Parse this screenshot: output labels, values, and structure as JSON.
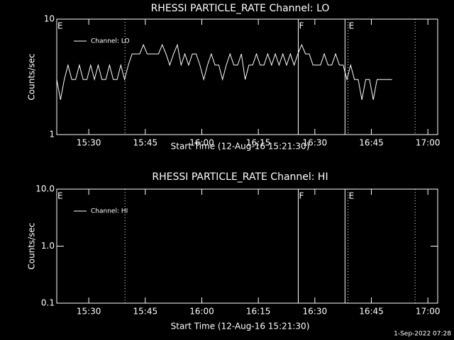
{
  "chart_data": [
    {
      "type": "line",
      "title": "RHESSI PARTICLE_RATE Channel: LO",
      "xlabel": "Start Time (12-Aug-16 15:21:30)",
      "ylabel": "Counts/sec",
      "log_y": true,
      "ylim": [
        1,
        10
      ],
      "yticks": [
        1,
        10
      ],
      "xlim": [
        0,
        101.1
      ],
      "xticks": [
        {
          "value": 8.5,
          "label": "15:30"
        },
        {
          "value": 23.5,
          "label": "15:45"
        },
        {
          "value": 38.5,
          "label": "16:00"
        },
        {
          "value": 53.5,
          "label": "16:15"
        },
        {
          "value": 68.5,
          "label": "16:30"
        },
        {
          "value": 83.5,
          "label": "16:45"
        },
        {
          "value": 98.5,
          "label": "17:00"
        }
      ],
      "x": [
        0,
        1,
        2,
        3,
        4,
        5,
        6,
        7,
        8,
        9,
        10,
        11,
        12,
        13,
        14,
        15,
        16,
        17,
        18,
        19,
        20,
        21,
        22,
        23,
        24,
        25,
        26,
        27,
        28,
        29,
        30,
        31,
        32,
        33,
        34,
        35,
        36,
        37,
        38,
        39,
        40,
        41,
        42,
        43,
        44,
        45,
        46,
        47,
        48,
        49,
        50,
        51,
        52,
        53,
        54,
        55,
        56,
        57,
        58,
        59,
        60,
        61,
        62,
        63,
        64,
        65,
        66,
        67,
        68,
        69,
        70,
        71,
        72,
        73,
        74,
        75,
        76,
        77,
        78,
        79,
        80,
        81,
        82,
        83,
        84,
        85,
        86,
        87,
        88,
        89
      ],
      "series": [
        {
          "name": "Channel: LO",
          "color": "#ffffff",
          "values": [
            3,
            2,
            3,
            4,
            3,
            3,
            4,
            3,
            3,
            4,
            3,
            4,
            3,
            3,
            4,
            3,
            3,
            4,
            3,
            4,
            5,
            5,
            5,
            6,
            5,
            5,
            5,
            5,
            6,
            5,
            4,
            5,
            6,
            4,
            5,
            4,
            5,
            5,
            4,
            3,
            4,
            5,
            4,
            4,
            3,
            4,
            5,
            4,
            4,
            5,
            3,
            4,
            4,
            5,
            4,
            4,
            5,
            4,
            5,
            4,
            5,
            4,
            5,
            4,
            5,
            6,
            5,
            5,
            4,
            4,
            4,
            5,
            4,
            4,
            5,
            4,
            4,
            3,
            4,
            3,
            3,
            2,
            3,
            3,
            2,
            3,
            3,
            3,
            3,
            3
          ]
        }
      ],
      "markers": [
        {
          "x": 18.1,
          "style": "dotted"
        },
        {
          "x": 64.1,
          "style": "solid"
        },
        {
          "x": 76.5,
          "style": "solid"
        },
        {
          "x": 77.3,
          "style": "dotted"
        },
        {
          "x": 95.1,
          "style": "dotted"
        }
      ],
      "annotations": [
        {
          "x": 0,
          "text": "E"
        },
        {
          "x": 64.1,
          "text": "F"
        },
        {
          "x": 77.3,
          "text": "E"
        }
      ]
    },
    {
      "type": "line",
      "title": "RHESSI PARTICLE_RATE Channel: HI",
      "xlabel": "Start Time (12-Aug-16 15:21:30)",
      "ylabel": "Counts/sec",
      "log_y": true,
      "ylim": [
        0.1,
        10
      ],
      "yticks": [
        0.1,
        {
          "value": 1,
          "label": "1.0"
        },
        {
          "value": 10,
          "label": "10.0"
        }
      ],
      "xlim": [
        0,
        101.1
      ],
      "xticks": [
        {
          "value": 8.5,
          "label": "15:30"
        },
        {
          "value": 23.5,
          "label": "15:45"
        },
        {
          "value": 38.5,
          "label": "16:00"
        },
        {
          "value": 53.5,
          "label": "16:15"
        },
        {
          "value": 68.5,
          "label": "16:30"
        },
        {
          "value": 83.5,
          "label": "16:45"
        },
        {
          "value": 98.5,
          "label": "17:00"
        }
      ],
      "x": [],
      "series": [
        {
          "name": "Channel: HI",
          "color": "#ffffff",
          "values": []
        }
      ],
      "markers": [
        {
          "x": 18.1,
          "style": "dotted"
        },
        {
          "x": 64.1,
          "style": "solid"
        },
        {
          "x": 76.5,
          "style": "solid"
        },
        {
          "x": 77.3,
          "style": "dotted"
        },
        {
          "x": 95.1,
          "style": "dotted"
        }
      ],
      "annotations": [
        {
          "x": 0,
          "text": "E"
        },
        {
          "x": 64.1,
          "text": "F"
        },
        {
          "x": 77.3,
          "text": "E"
        }
      ]
    }
  ],
  "footer": "1-Sep-2022 07:28"
}
